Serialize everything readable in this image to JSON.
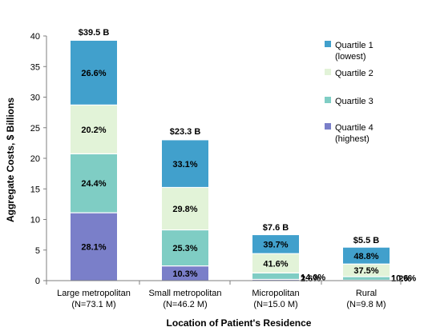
{
  "chart_data": {
    "type": "bar",
    "stacked": true,
    "xlabel": "Location of Patient's Residence",
    "ylabel": "Aggregate Costs,  $ Billions",
    "ylim": [
      0,
      40
    ],
    "yticks": [
      0,
      5,
      10,
      15,
      20,
      25,
      30,
      35,
      40
    ],
    "categories": [
      {
        "line1": "Large metropolitan",
        "line2": "(N=73.1 M)"
      },
      {
        "line1": "Small metropolitan",
        "line2": "(N=46.2 M)"
      },
      {
        "line1": "Micropolitan",
        "line2": "(N=15.0 M)"
      },
      {
        "line1": "Rural",
        "line2": "(N=9.8 M)"
      }
    ],
    "totals": [
      39.5,
      23.3,
      7.6,
      5.5
    ],
    "total_labels": [
      "$39.5 B",
      "$23.3 B",
      "$7.6 B",
      "$5.5 B"
    ],
    "series": [
      {
        "name_lines": [
          "Quartile 4",
          "(highest)"
        ],
        "color": "#7a7fc9",
        "share": [
          28.1,
          10.3,
          2.6,
          1.2
        ],
        "labels": [
          "28.1%",
          "10.3%",
          "2.6%",
          "1.2%"
        ]
      },
      {
        "name_lines": [
          "Quartile 3"
        ],
        "color": "#7fcdc4",
        "share": [
          24.4,
          25.3,
          14.0,
          10.6
        ],
        "labels": [
          "24.4%",
          "25.3%",
          "14.0%",
          "10.6%"
        ]
      },
      {
        "name_lines": [
          "Quartile 2"
        ],
        "color": "#e2f3d8",
        "share": [
          20.2,
          29.8,
          41.6,
          37.5
        ],
        "labels": [
          "20.2%",
          "29.8%",
          "41.6%",
          "37.5%"
        ]
      },
      {
        "name_lines": [
          "Quartile 1",
          "(lowest)"
        ],
        "color": "#41a0cc",
        "share": [
          26.6,
          33.1,
          39.7,
          48.8
        ],
        "labels": [
          "26.6%",
          "33.1%",
          "39.7%",
          "48.8%"
        ]
      }
    ],
    "legend_order": [
      3,
      2,
      1,
      0
    ],
    "legend_position": "top-right",
    "grid": false
  }
}
